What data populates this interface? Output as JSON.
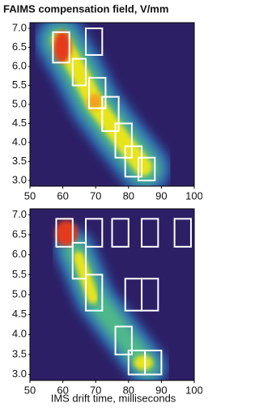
{
  "chart_data": [
    {
      "type": "heatmap",
      "title": "FAIMS compensation field, V/mm",
      "xlim": [
        50,
        100
      ],
      "ylim": [
        2.85,
        7.15
      ],
      "xticks": [
        50,
        60,
        70,
        80,
        90,
        100
      ],
      "yticks": [
        {
          "value": 3,
          "label": "3.0"
        },
        3.5,
        {
          "value": 4,
          "label": "4.0"
        },
        4.5,
        {
          "value": 5,
          "label": "5.0"
        },
        5.5,
        {
          "value": 6,
          "label": "6.0"
        },
        6.5,
        {
          "value": 7,
          "label": "7.0"
        }
      ],
      "box_color": "#ffffff",
      "boxes": [
        {
          "x": [
            57,
            62
          ],
          "y": [
            6.1,
            6.9
          ]
        },
        {
          "x": [
            63,
            67
          ],
          "y": [
            5.5,
            6.2
          ]
        },
        {
          "x": [
            67,
            72
          ],
          "y": [
            6.3,
            7.0
          ]
        },
        {
          "x": [
            68,
            73
          ],
          "y": [
            4.9,
            5.7
          ]
        },
        {
          "x": [
            72,
            77
          ],
          "y": [
            4.3,
            5.2
          ]
        },
        {
          "x": [
            76,
            81
          ],
          "y": [
            3.6,
            4.5
          ]
        },
        {
          "x": [
            79,
            84
          ],
          "y": [
            3.1,
            3.9
          ]
        },
        {
          "x": [
            83,
            88
          ],
          "y": [
            3.0,
            3.6
          ]
        }
      ]
    },
    {
      "type": "heatmap",
      "xlabel": "IMS drift time, milliseconds",
      "xlim": [
        50,
        100
      ],
      "ylim": [
        2.85,
        7.15
      ],
      "xticks": [
        50,
        60,
        70,
        80,
        90,
        100
      ],
      "yticks": [
        {
          "value": 3,
          "label": "3.0"
        },
        3.5,
        {
          "value": 4,
          "label": "4.0"
        },
        4.5,
        {
          "value": 5,
          "label": "5.0"
        },
        5.5,
        {
          "value": 6,
          "label": "6.0"
        },
        6.5,
        {
          "value": 7,
          "label": "7.0"
        }
      ],
      "box_color": "#ffffff",
      "boxes": [
        {
          "x": [
            58,
            63
          ],
          "y": [
            6.2,
            6.9
          ]
        },
        {
          "x": [
            63,
            67
          ],
          "y": [
            5.4,
            6.3
          ]
        },
        {
          "x": [
            67,
            72
          ],
          "y": [
            6.2,
            6.9
          ]
        },
        {
          "x": [
            67,
            72
          ],
          "y": [
            4.6,
            5.5
          ]
        },
        {
          "x": [
            75,
            80
          ],
          "y": [
            6.2,
            6.9
          ]
        },
        {
          "x": [
            79,
            84
          ],
          "y": [
            4.6,
            5.4
          ]
        },
        {
          "x": [
            84,
            89
          ],
          "y": [
            6.2,
            6.9
          ]
        },
        {
          "x": [
            84,
            89
          ],
          "y": [
            4.6,
            5.4
          ]
        },
        {
          "x": [
            94,
            99
          ],
          "y": [
            6.2,
            6.9
          ]
        },
        {
          "x": [
            76,
            81
          ],
          "y": [
            3.5,
            4.2
          ]
        },
        {
          "x": [
            80,
            85
          ],
          "y": [
            3.0,
            3.6
          ]
        },
        {
          "x": [
            85,
            90
          ],
          "y": [
            3.0,
            3.6
          ]
        }
      ]
    }
  ]
}
